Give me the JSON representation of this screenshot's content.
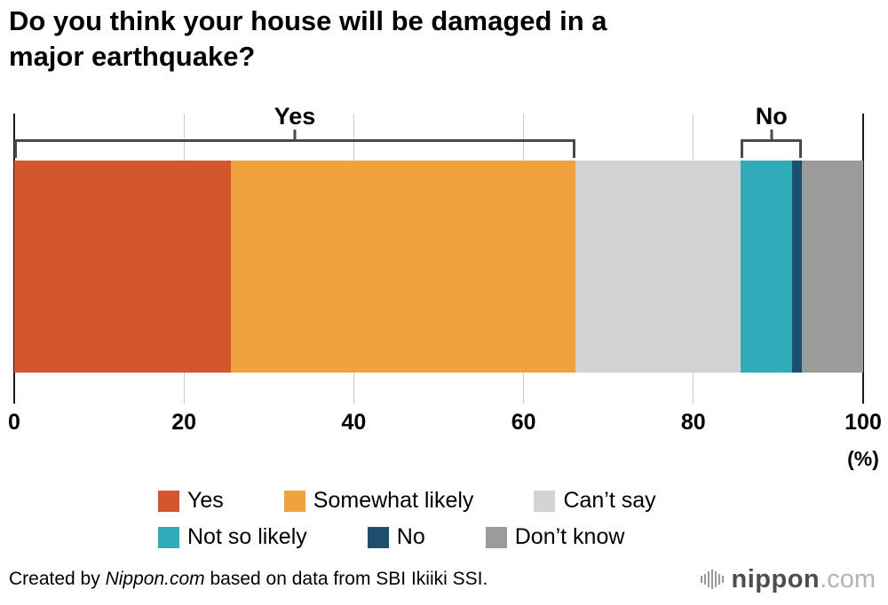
{
  "header": {
    "title_line1": "Do you think your house will be damaged in a",
    "title_line2": "major earthquake?"
  },
  "chart_data": {
    "type": "bar",
    "variant": "horizontal_stacked_single_bar",
    "title": "Do you think your house will be damaged in a major earthquake?",
    "unit_label": "(%)",
    "xlim": [
      0,
      100
    ],
    "x_ticks": [
      0,
      20,
      40,
      60,
      80,
      100
    ],
    "grid": true,
    "legend_position": "bottom",
    "segments": [
      {
        "label": "Yes",
        "value": 25.5,
        "color": "#d4562e"
      },
      {
        "label": "Somewhat likely",
        "value": 40.6,
        "color": "#f0a23c"
      },
      {
        "label": "Can’t say",
        "value": 19.5,
        "color": "#d3d3d3"
      },
      {
        "label": "Not so likely",
        "value": 6.0,
        "color": "#2fabba"
      },
      {
        "label": "No",
        "value": 1.2,
        "color": "#1c4f6e"
      },
      {
        "label": "Don’t know",
        "value": 7.2,
        "color": "#9b9b9b"
      }
    ],
    "annotations": [
      {
        "label": "Yes",
        "from_pct": 0,
        "to_pct": 66.1,
        "covers": [
          "Yes",
          "Somewhat likely"
        ]
      },
      {
        "label": "No",
        "from_pct": 85.6,
        "to_pct": 92.8,
        "covers": [
          "Not so likely",
          "No"
        ]
      }
    ]
  },
  "footer": {
    "credit_prefix": "Created by",
    "credit_source": "Nippon.com",
    "credit_suffix": "based on data from SBI Ikiiki SSI.",
    "logo": {
      "name": "nippon",
      "tld": ".com"
    }
  },
  "colors": {
    "bracket": "#4a4a4a",
    "gridline": "#cbcbcb",
    "axis_edge": "#1a1a1a"
  }
}
